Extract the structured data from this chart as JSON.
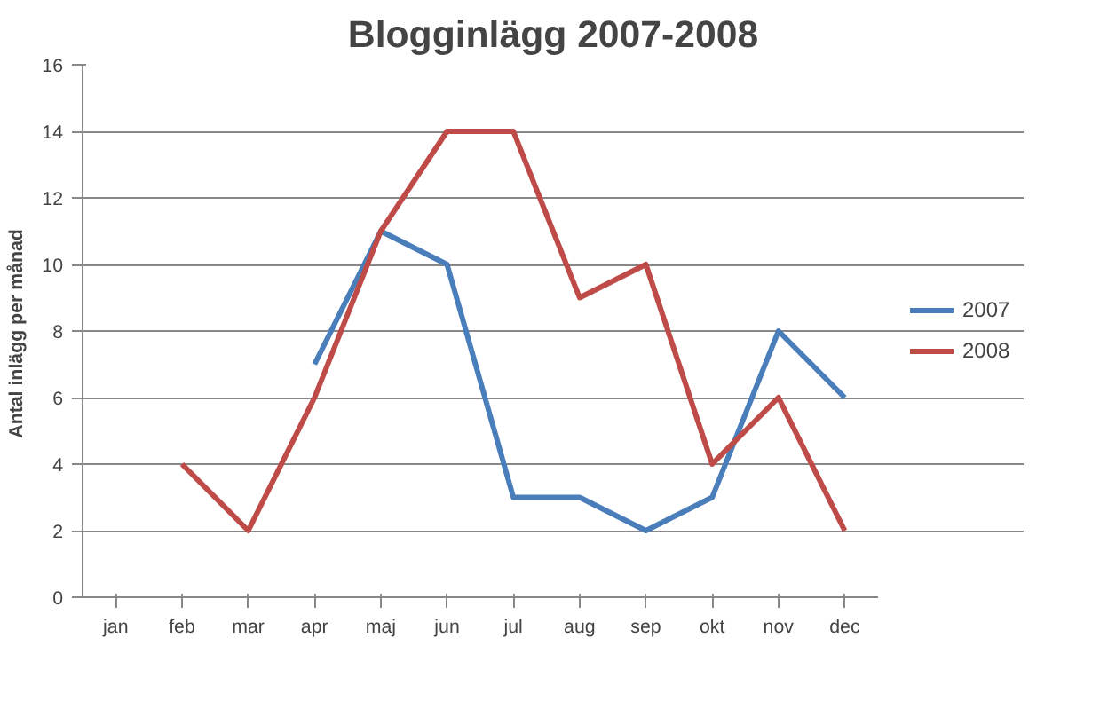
{
  "chart_data": {
    "type": "line",
    "title": "Blogginlägg 2007-2008",
    "ylabel": "Antal inlägg  per månad",
    "categories": [
      "jan",
      "feb",
      "mar",
      "apr",
      "maj",
      "jun",
      "jul",
      "aug",
      "sep",
      "okt",
      "nov",
      "dec"
    ],
    "series": [
      {
        "name": "2007",
        "color": "#4a7ebb",
        "values": [
          null,
          null,
          null,
          7,
          11,
          10,
          3,
          3,
          2,
          3,
          8,
          6
        ]
      },
      {
        "name": "2008",
        "color": "#be4b48",
        "values": [
          null,
          4,
          2,
          6,
          11,
          14,
          14,
          9,
          10,
          4,
          6,
          2
        ]
      }
    ],
    "ylim": [
      0,
      16
    ],
    "yticks": [
      0,
      2,
      4,
      6,
      8,
      10,
      12,
      14,
      16
    ],
    "grid": "y",
    "legend": "right",
    "marker": "none",
    "line_style": "solid"
  }
}
